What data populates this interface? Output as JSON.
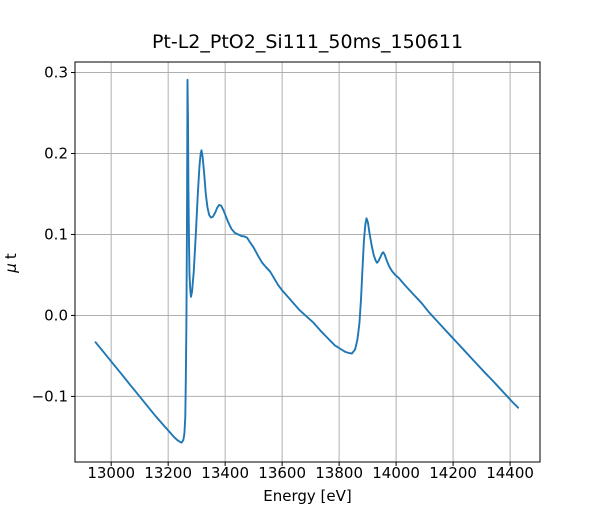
{
  "colors": {
    "line": "#1f77b4",
    "grid": "#b0b0b0",
    "axis": "#000000",
    "background": "#ffffff"
  },
  "chart_data": {
    "type": "line",
    "title": "Pt-L2_PtO2_Si111_50ms_150611",
    "xlabel": "Energy [eV]",
    "ylabel": "μ t",
    "ylabel_symbol": "μ",
    "ylabel_rest": "t",
    "grid": true,
    "legend": "none",
    "xlim": [
      12873,
      14505
    ],
    "ylim": [
      -0.181,
      0.313
    ],
    "xticks": {
      "values": [
        13000,
        13200,
        13400,
        13600,
        13800,
        14000,
        14200,
        14400
      ],
      "labels": [
        "13000",
        "13200",
        "13400",
        "13600",
        "13800",
        "14000",
        "14200",
        "14400"
      ]
    },
    "yticks": {
      "values": [
        0.3,
        0.2,
        0.1,
        0.0,
        -0.1
      ],
      "labels": [
        "0.3",
        "0.2",
        "0.1",
        "0.0",
        "−0.1"
      ]
    },
    "series": [
      {
        "name": "mu_t_absorption",
        "color": "#1f77b4",
        "x": [
          12945,
          12975,
          13005,
          13035,
          13065,
          13095,
          13125,
          13155,
          13185,
          13205,
          13220,
          13232,
          13241,
          13247,
          13253,
          13257,
          13260,
          13262,
          13264,
          13266,
          13267,
          13268,
          13269.5,
          13271,
          13273,
          13275,
          13277.5,
          13280,
          13284,
          13290,
          13297,
          13304,
          13310,
          13314,
          13317,
          13321,
          13326,
          13332,
          13338,
          13344,
          13350,
          13357,
          13365,
          13372,
          13379,
          13386,
          13394,
          13402,
          13412,
          13422,
          13434,
          13446,
          13458,
          13468,
          13477,
          13488,
          13500,
          13515,
          13530,
          13545,
          13558,
          13570,
          13585,
          13600,
          13620,
          13640,
          13660,
          13685,
          13710,
          13735,
          13760,
          13785,
          13805,
          13822,
          13835,
          13845,
          13856,
          13864,
          13871,
          13877,
          13882,
          13887,
          13892,
          13896,
          13901,
          13907,
          13914,
          13921,
          13928,
          13933,
          13938,
          13945,
          13951,
          13955,
          13960,
          13967,
          13975,
          13985,
          13997,
          14010,
          14022,
          14032,
          14045,
          14065,
          14090,
          14115,
          14140,
          14165,
          14190,
          14215,
          14240,
          14265,
          14290,
          14315,
          14340,
          14365,
          14390,
          14410,
          14428
        ],
        "y": [
          -0.033,
          -0.046,
          -0.059,
          -0.072,
          -0.085,
          -0.098,
          -0.111,
          -0.124,
          -0.136,
          -0.144,
          -0.15,
          -0.154,
          -0.156,
          -0.157,
          -0.154,
          -0.146,
          -0.125,
          -0.08,
          -0.01,
          0.12,
          0.22,
          0.291,
          0.24,
          0.16,
          0.09,
          0.05,
          0.031,
          0.023,
          0.03,
          0.055,
          0.1,
          0.15,
          0.185,
          0.2,
          0.204,
          0.196,
          0.176,
          0.15,
          0.133,
          0.124,
          0.121,
          0.122,
          0.127,
          0.133,
          0.1365,
          0.1355,
          0.13,
          0.123,
          0.114,
          0.107,
          0.102,
          0.1,
          0.098,
          0.0975,
          0.096,
          0.09,
          0.084,
          0.074,
          0.065,
          0.059,
          0.054,
          0.047,
          0.038,
          0.031,
          0.023,
          0.015,
          0.007,
          -0.001,
          -0.009,
          -0.019,
          -0.028,
          -0.037,
          -0.0415,
          -0.045,
          -0.0465,
          -0.047,
          -0.042,
          -0.03,
          -0.01,
          0.022,
          0.058,
          0.092,
          0.112,
          0.12,
          0.115,
          0.101,
          0.087,
          0.075,
          0.068,
          0.065,
          0.067,
          0.072,
          0.077,
          0.078,
          0.075,
          0.068,
          0.061,
          0.055,
          0.05,
          0.046,
          0.041,
          0.037,
          0.032,
          0.0245,
          0.015,
          0.004,
          -0.0055,
          -0.015,
          -0.0245,
          -0.034,
          -0.0435,
          -0.053,
          -0.0625,
          -0.072,
          -0.081,
          -0.0905,
          -0.1,
          -0.1075,
          -0.114
        ]
      }
    ]
  }
}
